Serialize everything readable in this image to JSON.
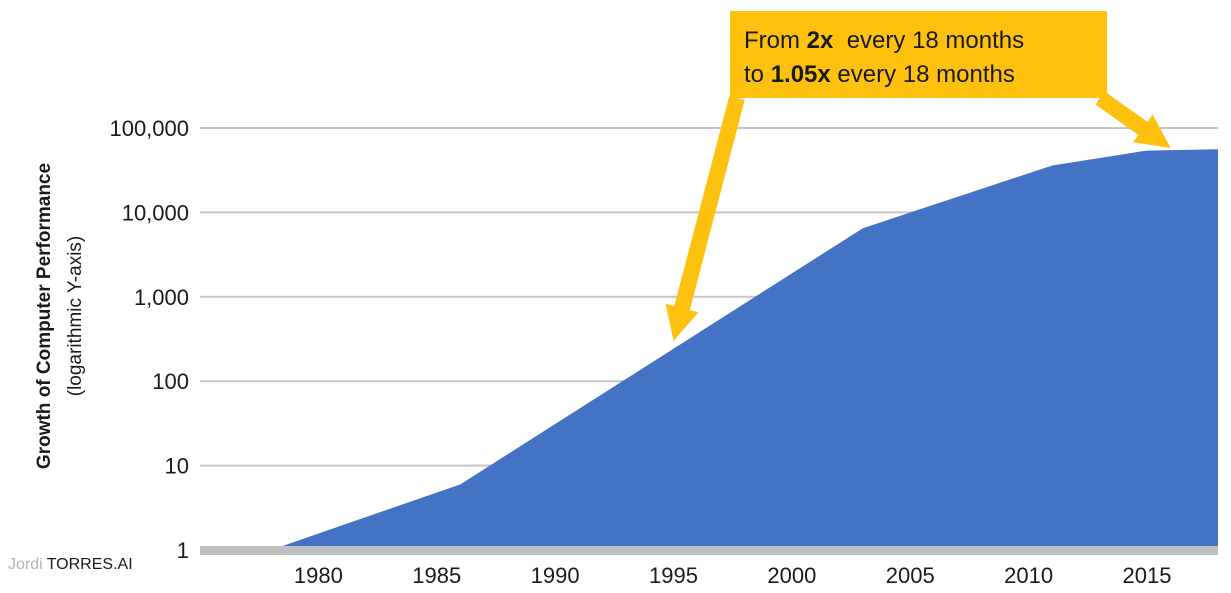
{
  "chart_data": {
    "type": "area",
    "x": [
      1978,
      1986,
      2003,
      2011,
      2015,
      2018
    ],
    "values": [
      1,
      6,
      6500,
      36000,
      54000,
      56000
    ],
    "ylabel": "Growth of Computer Performance",
    "ylabel_sub": "(logarithmic Y-axis)",
    "x_ticks": [
      "1980",
      "1985",
      "1990",
      "1995",
      "2000",
      "2005",
      "2010",
      "2015"
    ],
    "y_ticks": [
      "1",
      "10",
      "100",
      "1,000",
      "10,000",
      "100,000"
    ],
    "xlim": [
      1975,
      2018
    ],
    "ylim": [
      1,
      100000
    ],
    "y_scale": "log",
    "grid": true,
    "annotation": {
      "line1_prefix": "From ",
      "line1_bold": "2x",
      "line1_suffix": "  every 18 months",
      "line2_prefix": "to ",
      "line2_bold": "1.05x",
      "line2_suffix": " every 18 months",
      "arrow_targets": [
        {
          "x": 1995,
          "y": 300
        },
        {
          "x": 2016,
          "y": 58000
        }
      ]
    },
    "colors": {
      "area": "#4472c4",
      "grid": "#c7c7c7",
      "baseline": "#bfbfbf",
      "callout": "#fdc10e"
    }
  },
  "watermark": {
    "first": "Jordi",
    "second": "TORRES.AI"
  }
}
